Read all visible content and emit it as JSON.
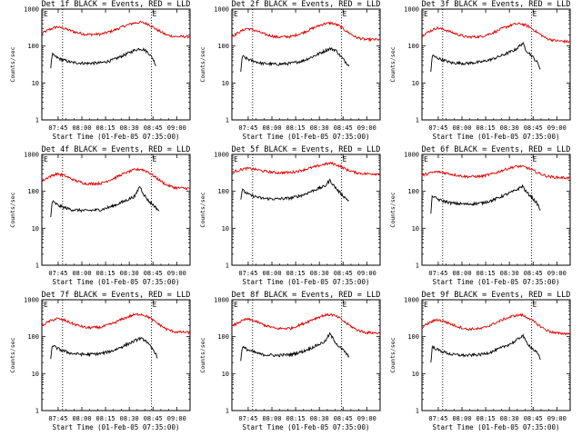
{
  "chart_data": {
    "type": "line",
    "xlabel": "Start Time (01-Feb-05 07:35:00)",
    "ylabel": "Counts/sec",
    "y_scale": "log",
    "ylim": [
      1,
      1000
    ],
    "y_ticks": [
      "1",
      "10",
      "100",
      "1000"
    ],
    "x_ticks": [
      "07:45",
      "08:00",
      "08:15",
      "08:30",
      "08:45",
      "09:00"
    ],
    "series_colors": {
      "events": "#000000",
      "lld": "#e00000"
    },
    "marker_label": "E",
    "panels": [
      {
        "title": "Det 1f BLACK = Events, RED = LLD",
        "events": [
          [
            0.06,
            25
          ],
          [
            0.07,
            60
          ],
          [
            0.08,
            55
          ],
          [
            0.12,
            45
          ],
          [
            0.2,
            36
          ],
          [
            0.3,
            34
          ],
          [
            0.4,
            35
          ],
          [
            0.48,
            42
          ],
          [
            0.56,
            58
          ],
          [
            0.63,
            78
          ],
          [
            0.66,
            85
          ],
          [
            0.69,
            80
          ],
          [
            0.72,
            65
          ],
          [
            0.75,
            45
          ],
          [
            0.77,
            30
          ]
        ],
        "lld": [
          [
            0,
            220
          ],
          [
            0.05,
            280
          ],
          [
            0.1,
            330
          ],
          [
            0.15,
            300
          ],
          [
            0.22,
            240
          ],
          [
            0.3,
            205
          ],
          [
            0.4,
            210
          ],
          [
            0.48,
            260
          ],
          [
            0.55,
            340
          ],
          [
            0.62,
            420
          ],
          [
            0.67,
            440
          ],
          [
            0.72,
            390
          ],
          [
            0.78,
            270
          ],
          [
            0.84,
            200
          ],
          [
            0.9,
            180
          ],
          [
            1,
            180
          ]
        ]
      },
      {
        "title": "Det 2f BLACK = Events, RED = LLD",
        "events": [
          [
            0.06,
            20
          ],
          [
            0.07,
            55
          ],
          [
            0.08,
            50
          ],
          [
            0.12,
            42
          ],
          [
            0.2,
            34
          ],
          [
            0.3,
            32
          ],
          [
            0.4,
            34
          ],
          [
            0.48,
            40
          ],
          [
            0.56,
            55
          ],
          [
            0.63,
            75
          ],
          [
            0.66,
            85
          ],
          [
            0.7,
            78
          ],
          [
            0.73,
            55
          ],
          [
            0.76,
            40
          ],
          [
            0.79,
            30
          ]
        ],
        "lld": [
          [
            0,
            180
          ],
          [
            0.05,
            240
          ],
          [
            0.1,
            300
          ],
          [
            0.15,
            270
          ],
          [
            0.22,
            210
          ],
          [
            0.3,
            175
          ],
          [
            0.4,
            180
          ],
          [
            0.48,
            230
          ],
          [
            0.55,
            310
          ],
          [
            0.62,
            400
          ],
          [
            0.67,
            420
          ],
          [
            0.72,
            360
          ],
          [
            0.78,
            240
          ],
          [
            0.84,
            170
          ],
          [
            0.9,
            150
          ],
          [
            1,
            150
          ]
        ]
      },
      {
        "title": "Det 3f BLACK = Events, RED = LLD",
        "events": [
          [
            0.06,
            20
          ],
          [
            0.07,
            58
          ],
          [
            0.08,
            52
          ],
          [
            0.12,
            45
          ],
          [
            0.2,
            35
          ],
          [
            0.3,
            34
          ],
          [
            0.4,
            37
          ],
          [
            0.48,
            45
          ],
          [
            0.56,
            60
          ],
          [
            0.63,
            80
          ],
          [
            0.68,
            120
          ],
          [
            0.7,
            80
          ],
          [
            0.74,
            55
          ],
          [
            0.78,
            35
          ],
          [
            0.8,
            24
          ]
        ],
        "lld": [
          [
            0,
            190
          ],
          [
            0.05,
            250
          ],
          [
            0.1,
            310
          ],
          [
            0.15,
            280
          ],
          [
            0.22,
            220
          ],
          [
            0.3,
            175
          ],
          [
            0.4,
            180
          ],
          [
            0.48,
            230
          ],
          [
            0.55,
            310
          ],
          [
            0.62,
            390
          ],
          [
            0.67,
            400
          ],
          [
            0.72,
            340
          ],
          [
            0.78,
            230
          ],
          [
            0.84,
            160
          ],
          [
            0.9,
            140
          ],
          [
            1,
            130
          ]
        ]
      },
      {
        "title": "Det 4f BLACK = Events, RED = LLD",
        "events": [
          [
            0.06,
            20
          ],
          [
            0.07,
            55
          ],
          [
            0.08,
            50
          ],
          [
            0.12,
            40
          ],
          [
            0.2,
            32
          ],
          [
            0.3,
            30
          ],
          [
            0.4,
            32
          ],
          [
            0.48,
            40
          ],
          [
            0.56,
            55
          ],
          [
            0.63,
            75
          ],
          [
            0.66,
            140
          ],
          [
            0.69,
            80
          ],
          [
            0.72,
            55
          ],
          [
            0.76,
            40
          ],
          [
            0.79,
            30
          ]
        ],
        "lld": [
          [
            0,
            190
          ],
          [
            0.05,
            250
          ],
          [
            0.1,
            300
          ],
          [
            0.15,
            270
          ],
          [
            0.22,
            200
          ],
          [
            0.3,
            160
          ],
          [
            0.4,
            165
          ],
          [
            0.48,
            220
          ],
          [
            0.55,
            300
          ],
          [
            0.62,
            380
          ],
          [
            0.67,
            400
          ],
          [
            0.72,
            330
          ],
          [
            0.78,
            220
          ],
          [
            0.84,
            150
          ],
          [
            0.9,
            125
          ],
          [
            1,
            120
          ]
        ]
      },
      {
        "title": "Det 5f BLACK = Events, RED = LLD",
        "events": [
          [
            0.06,
            60
          ],
          [
            0.07,
            115
          ],
          [
            0.08,
            100
          ],
          [
            0.12,
            80
          ],
          [
            0.2,
            65
          ],
          [
            0.3,
            62
          ],
          [
            0.4,
            66
          ],
          [
            0.48,
            80
          ],
          [
            0.56,
            110
          ],
          [
            0.63,
            140
          ],
          [
            0.66,
            200
          ],
          [
            0.69,
            140
          ],
          [
            0.72,
            100
          ],
          [
            0.76,
            70
          ],
          [
            0.79,
            55
          ]
        ],
        "lld": [
          [
            0,
            330
          ],
          [
            0.05,
            380
          ],
          [
            0.1,
            420
          ],
          [
            0.15,
            400
          ],
          [
            0.22,
            350
          ],
          [
            0.3,
            320
          ],
          [
            0.4,
            325
          ],
          [
            0.48,
            380
          ],
          [
            0.55,
            450
          ],
          [
            0.62,
            540
          ],
          [
            0.67,
            580
          ],
          [
            0.72,
            500
          ],
          [
            0.78,
            380
          ],
          [
            0.84,
            320
          ],
          [
            0.9,
            300
          ],
          [
            1,
            300
          ]
        ]
      },
      {
        "title": "Det 6f BLACK = Events, RED = LLD",
        "events": [
          [
            0.06,
            25
          ],
          [
            0.07,
            80
          ],
          [
            0.08,
            70
          ],
          [
            0.12,
            58
          ],
          [
            0.2,
            48
          ],
          [
            0.3,
            45
          ],
          [
            0.4,
            48
          ],
          [
            0.48,
            58
          ],
          [
            0.56,
            80
          ],
          [
            0.63,
            105
          ],
          [
            0.68,
            140
          ],
          [
            0.7,
            100
          ],
          [
            0.74,
            70
          ],
          [
            0.78,
            45
          ],
          [
            0.8,
            30
          ]
        ],
        "lld": [
          [
            0,
            270
          ],
          [
            0.05,
            310
          ],
          [
            0.1,
            340
          ],
          [
            0.15,
            320
          ],
          [
            0.22,
            280
          ],
          [
            0.3,
            250
          ],
          [
            0.4,
            255
          ],
          [
            0.48,
            300
          ],
          [
            0.55,
            380
          ],
          [
            0.62,
            460
          ],
          [
            0.67,
            480
          ],
          [
            0.72,
            420
          ],
          [
            0.78,
            320
          ],
          [
            0.84,
            260
          ],
          [
            0.9,
            240
          ],
          [
            1,
            230
          ]
        ]
      },
      {
        "title": "Det 7f BLACK = Events, RED = LLD",
        "events": [
          [
            0.06,
            25
          ],
          [
            0.07,
            60
          ],
          [
            0.08,
            55
          ],
          [
            0.12,
            45
          ],
          [
            0.2,
            35
          ],
          [
            0.3,
            33
          ],
          [
            0.4,
            35
          ],
          [
            0.48,
            42
          ],
          [
            0.56,
            58
          ],
          [
            0.63,
            78
          ],
          [
            0.66,
            90
          ],
          [
            0.7,
            80
          ],
          [
            0.73,
            55
          ],
          [
            0.76,
            40
          ],
          [
            0.78,
            28
          ]
        ],
        "lld": [
          [
            0,
            200
          ],
          [
            0.05,
            260
          ],
          [
            0.1,
            310
          ],
          [
            0.15,
            280
          ],
          [
            0.22,
            215
          ],
          [
            0.3,
            175
          ],
          [
            0.4,
            180
          ],
          [
            0.48,
            230
          ],
          [
            0.55,
            310
          ],
          [
            0.62,
            390
          ],
          [
            0.67,
            410
          ],
          [
            0.72,
            340
          ],
          [
            0.78,
            230
          ],
          [
            0.84,
            160
          ],
          [
            0.9,
            135
          ],
          [
            1,
            130
          ]
        ]
      },
      {
        "title": "Det 8f BLACK = Events, RED = LLD",
        "events": [
          [
            0.06,
            22
          ],
          [
            0.07,
            55
          ],
          [
            0.08,
            50
          ],
          [
            0.12,
            42
          ],
          [
            0.2,
            33
          ],
          [
            0.3,
            31
          ],
          [
            0.4,
            33
          ],
          [
            0.48,
            40
          ],
          [
            0.56,
            55
          ],
          [
            0.63,
            75
          ],
          [
            0.66,
            120
          ],
          [
            0.69,
            80
          ],
          [
            0.72,
            55
          ],
          [
            0.76,
            40
          ],
          [
            0.79,
            28
          ]
        ],
        "lld": [
          [
            0,
            190
          ],
          [
            0.05,
            250
          ],
          [
            0.1,
            300
          ],
          [
            0.15,
            270
          ],
          [
            0.22,
            205
          ],
          [
            0.3,
            165
          ],
          [
            0.4,
            170
          ],
          [
            0.48,
            225
          ],
          [
            0.55,
            300
          ],
          [
            0.62,
            380
          ],
          [
            0.67,
            400
          ],
          [
            0.72,
            330
          ],
          [
            0.78,
            220
          ],
          [
            0.84,
            155
          ],
          [
            0.9,
            130
          ],
          [
            1,
            125
          ]
        ]
      },
      {
        "title": "Det 9f BLACK = Events, RED = LLD",
        "events": [
          [
            0.06,
            20
          ],
          [
            0.07,
            55
          ],
          [
            0.08,
            50
          ],
          [
            0.12,
            42
          ],
          [
            0.2,
            33
          ],
          [
            0.3,
            31
          ],
          [
            0.4,
            33
          ],
          [
            0.48,
            40
          ],
          [
            0.56,
            55
          ],
          [
            0.63,
            75
          ],
          [
            0.68,
            110
          ],
          [
            0.7,
            75
          ],
          [
            0.74,
            50
          ],
          [
            0.78,
            35
          ],
          [
            0.8,
            24
          ]
        ],
        "lld": [
          [
            0,
            180
          ],
          [
            0.05,
            240
          ],
          [
            0.1,
            290
          ],
          [
            0.15,
            260
          ],
          [
            0.22,
            200
          ],
          [
            0.3,
            160
          ],
          [
            0.4,
            165
          ],
          [
            0.48,
            220
          ],
          [
            0.55,
            295
          ],
          [
            0.62,
            370
          ],
          [
            0.67,
            390
          ],
          [
            0.72,
            320
          ],
          [
            0.78,
            215
          ],
          [
            0.84,
            150
          ],
          [
            0.9,
            125
          ],
          [
            1,
            120
          ]
        ]
      }
    ]
  }
}
